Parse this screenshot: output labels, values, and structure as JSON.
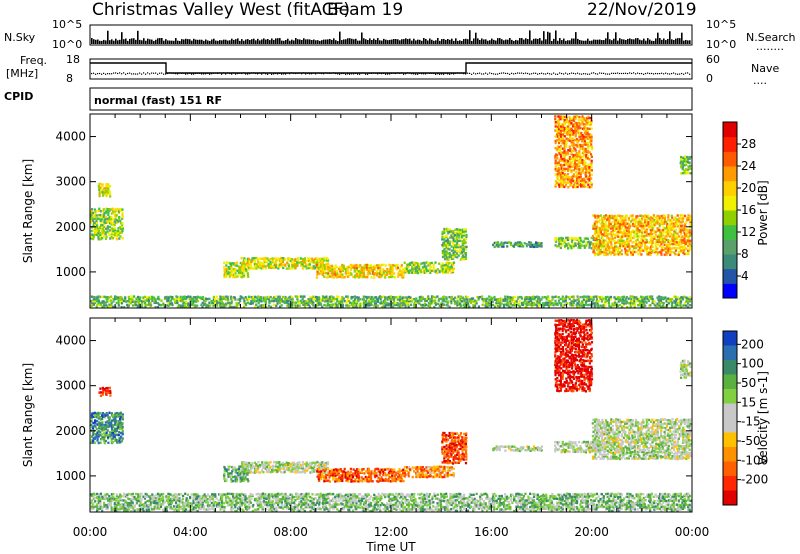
{
  "header": {
    "station": "Christmas Valley West (fitACF)",
    "beam": "Beam 19",
    "date": "22/Nov/2019"
  },
  "strips": {
    "nsky_label": "N.Sky",
    "nsearch_label": "N.Search",
    "nsearch_dots": "........",
    "left_top_tick": "10^5",
    "left_bottom_tick": "10^0",
    "right_top_tick": "10^5",
    "right_bottom_tick": "10^0",
    "freq_label_line1": "Freq.",
    "freq_label_line2": "[MHz]",
    "freq_ticks": [
      "18",
      "8"
    ],
    "nave_label": "Nave",
    "nave_dots": "....",
    "nave_ticks": [
      "60",
      "0"
    ],
    "cpid_label": "CPID",
    "cpid_text": "normal (fast) 151 RF"
  },
  "chart_data": [
    {
      "type": "heatmap",
      "name": "power",
      "title": "",
      "xlabel": "Time UT",
      "ylabel": "Slant Range [km]",
      "x_ticks": [
        "00:00",
        "04:00",
        "08:00",
        "12:00",
        "16:00",
        "20:00",
        "00:00"
      ],
      "xlim_hours": [
        0,
        24
      ],
      "ylim": [
        200,
        4500
      ],
      "y_ticks": [
        1000,
        2000,
        3000,
        4000
      ],
      "colorbar": {
        "label": "Power [dB]",
        "ticks": [
          "4",
          "8",
          "12",
          "16",
          "20",
          "24",
          "28"
        ],
        "colors": [
          "#0000ff",
          "#2454a8",
          "#3c8a78",
          "#5aa06a",
          "#40c040",
          "#90d000",
          "#f0f000",
          "#ffd000",
          "#ff9a00",
          "#ff5a00",
          "#ff2000",
          "#e00000"
        ]
      },
      "echo_regions": [
        {
          "t0": 0.0,
          "t1": 24.0,
          "r0": 230,
          "r1": 500,
          "level": 0.35
        },
        {
          "t0": 0.0,
          "t1": 1.3,
          "r0": 1750,
          "r1": 2450,
          "level": 0.45
        },
        {
          "t0": 0.3,
          "t1": 0.8,
          "r0": 2700,
          "r1": 3000,
          "level": 0.55
        },
        {
          "t0": 5.3,
          "t1": 6.3,
          "r0": 900,
          "r1": 1250,
          "level": 0.5
        },
        {
          "t0": 6.0,
          "t1": 9.5,
          "r0": 1100,
          "r1": 1350,
          "level": 0.55
        },
        {
          "t0": 9.0,
          "t1": 12.5,
          "r0": 900,
          "r1": 1200,
          "level": 0.6
        },
        {
          "t0": 12.5,
          "t1": 14.5,
          "r0": 1000,
          "r1": 1250,
          "level": 0.45
        },
        {
          "t0": 14.0,
          "t1": 15.0,
          "r0": 1300,
          "r1": 2000,
          "level": 0.4
        },
        {
          "t0": 16.0,
          "t1": 18.0,
          "r0": 1580,
          "r1": 1700,
          "level": 0.3
        },
        {
          "t0": 18.5,
          "t1": 20.0,
          "r0": 2900,
          "r1": 4500,
          "level": 0.7
        },
        {
          "t0": 18.5,
          "t1": 20.5,
          "r0": 1550,
          "r1": 1800,
          "level": 0.4
        },
        {
          "t0": 20.0,
          "t1": 24.0,
          "r0": 1400,
          "r1": 2300,
          "level": 0.65
        },
        {
          "t0": 23.5,
          "t1": 24.0,
          "r0": 3200,
          "r1": 3600,
          "level": 0.4
        }
      ]
    },
    {
      "type": "heatmap",
      "name": "velocity",
      "title": "",
      "xlabel": "Time UT",
      "ylabel": "Slant Range [km]",
      "x_ticks": [
        "00:00",
        "04:00",
        "08:00",
        "12:00",
        "16:00",
        "20:00",
        "00:00"
      ],
      "xlim_hours": [
        0,
        24
      ],
      "ylim": [
        200,
        4500
      ],
      "y_ticks": [
        1000,
        2000,
        3000,
        4000
      ],
      "colorbar": {
        "label": "Velocity [m s-1]",
        "ticks": [
          "200",
          "100",
          "50",
          "15",
          "-15",
          "-50",
          "-100",
          "-200"
        ],
        "colors": [
          "#1040c0",
          "#2a70b0",
          "#3a8a6a",
          "#5ab040",
          "#80d040",
          "#c8c8c8",
          "#c8c8c8",
          "#ffc000",
          "#ff9000",
          "#ff6000",
          "#ff2800",
          "#e00000"
        ]
      },
      "echo_regions": [
        {
          "t0": 0.0,
          "t1": 24.0,
          "r0": 230,
          "r1": 650,
          "level": 0.35
        },
        {
          "t0": 0.0,
          "t1": 1.3,
          "r0": 1750,
          "r1": 2450,
          "level": 0.2
        },
        {
          "t0": 0.3,
          "t1": 0.8,
          "r0": 2800,
          "r1": 3000,
          "level": 0.95
        },
        {
          "t0": 5.3,
          "t1": 6.3,
          "r0": 900,
          "r1": 1250,
          "level": 0.3
        },
        {
          "t0": 6.0,
          "t1": 9.5,
          "r0": 1100,
          "r1": 1350,
          "level": 0.45
        },
        {
          "t0": 9.0,
          "t1": 12.5,
          "r0": 900,
          "r1": 1200,
          "level": 0.8
        },
        {
          "t0": 12.5,
          "t1": 14.5,
          "r0": 1000,
          "r1": 1250,
          "level": 0.7
        },
        {
          "t0": 14.0,
          "t1": 15.0,
          "r0": 1300,
          "r1": 2000,
          "level": 0.85
        },
        {
          "t0": 16.0,
          "t1": 18.0,
          "r0": 1580,
          "r1": 1700,
          "level": 0.45
        },
        {
          "t0": 18.5,
          "t1": 20.0,
          "r0": 2900,
          "r1": 4500,
          "level": 0.97
        },
        {
          "t0": 18.5,
          "t1": 20.5,
          "r0": 1550,
          "r1": 1800,
          "level": 0.45
        },
        {
          "t0": 20.0,
          "t1": 24.0,
          "r0": 1400,
          "r1": 2300,
          "level": 0.45
        },
        {
          "t0": 23.5,
          "t1": 24.0,
          "r0": 3200,
          "r1": 3600,
          "level": 0.45
        }
      ]
    }
  ]
}
